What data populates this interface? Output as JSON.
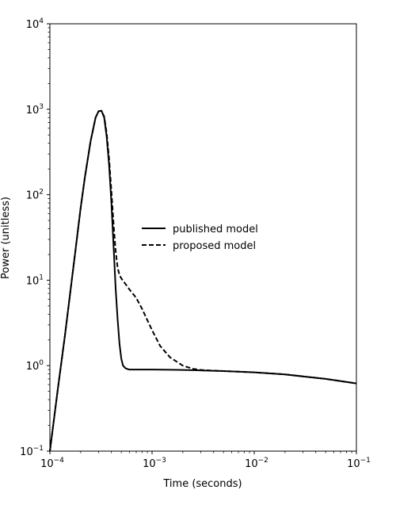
{
  "chart_data": {
    "type": "line",
    "title": "",
    "xlabel": "Time (seconds)",
    "ylabel": "Power (unitless)",
    "xscale": "log",
    "yscale": "log",
    "xlim": [
      0.0001,
      0.1
    ],
    "ylim": [
      0.1,
      10000
    ],
    "x_ticks": [
      {
        "base": "10",
        "exp": "−4",
        "value": 0.0001
      },
      {
        "base": "10",
        "exp": "−3",
        "value": 0.001
      },
      {
        "base": "10",
        "exp": "−2",
        "value": 0.01
      },
      {
        "base": "10",
        "exp": "−1",
        "value": 0.1
      }
    ],
    "y_ticks": [
      {
        "base": "10",
        "exp": "−1",
        "value": 0.1
      },
      {
        "base": "10",
        "exp": "0",
        "value": 1
      },
      {
        "base": "10",
        "exp": "1",
        "value": 10
      },
      {
        "base": "10",
        "exp": "2",
        "value": 100
      },
      {
        "base": "10",
        "exp": "3",
        "value": 1000
      },
      {
        "base": "10",
        "exp": "4",
        "value": 10000
      }
    ],
    "grid": false,
    "legend": "center",
    "series": [
      {
        "name": "published model",
        "style": "solid",
        "color": "#000000",
        "x": [
          0.0001,
          0.00012,
          0.00014,
          0.00016,
          0.00018,
          0.0002,
          0.00022,
          0.00025,
          0.00028,
          0.0003,
          0.00032,
          0.00034,
          0.00036,
          0.00038,
          0.0004,
          0.00042,
          0.00044,
          0.00046,
          0.00048,
          0.0005,
          0.00052,
          0.00055,
          0.00058,
          0.0006,
          0.00065,
          0.0007,
          0.0008,
          0.001,
          0.0015,
          0.002,
          0.003,
          0.005,
          0.01,
          0.02,
          0.05,
          0.1
        ],
        "y": [
          0.1,
          0.55,
          2.2,
          8,
          25,
          70,
          160,
          420,
          800,
          950,
          960,
          800,
          470,
          220,
          80,
          25,
          8,
          3.5,
          1.8,
          1.2,
          1.0,
          0.93,
          0.91,
          0.9,
          0.9,
          0.9,
          0.9,
          0.9,
          0.895,
          0.89,
          0.88,
          0.865,
          0.835,
          0.79,
          0.7,
          0.62
        ]
      },
      {
        "name": "proposed model",
        "style": "dashed",
        "color": "#000000",
        "x": [
          0.0001,
          0.00012,
          0.00014,
          0.00016,
          0.00018,
          0.0002,
          0.00022,
          0.00025,
          0.00028,
          0.0003,
          0.00032,
          0.00034,
          0.00036,
          0.00038,
          0.0004,
          0.00042,
          0.00044,
          0.00046,
          0.00048,
          0.0005,
          0.00055,
          0.0006,
          0.0007,
          0.0008,
          0.0009,
          0.001,
          0.0012,
          0.0015,
          0.002,
          0.0025,
          0.003,
          0.004,
          0.005,
          0.01,
          0.02,
          0.05,
          0.1
        ],
        "y": [
          0.1,
          0.55,
          2.2,
          8,
          25,
          70,
          160,
          420,
          800,
          950,
          960,
          820,
          520,
          260,
          110,
          45,
          22,
          14,
          11.5,
          10.5,
          9,
          7.8,
          6.2,
          4.6,
          3.4,
          2.6,
          1.7,
          1.25,
          1.0,
          0.92,
          0.89,
          0.875,
          0.865,
          0.835,
          0.79,
          0.7,
          0.62
        ]
      }
    ]
  }
}
